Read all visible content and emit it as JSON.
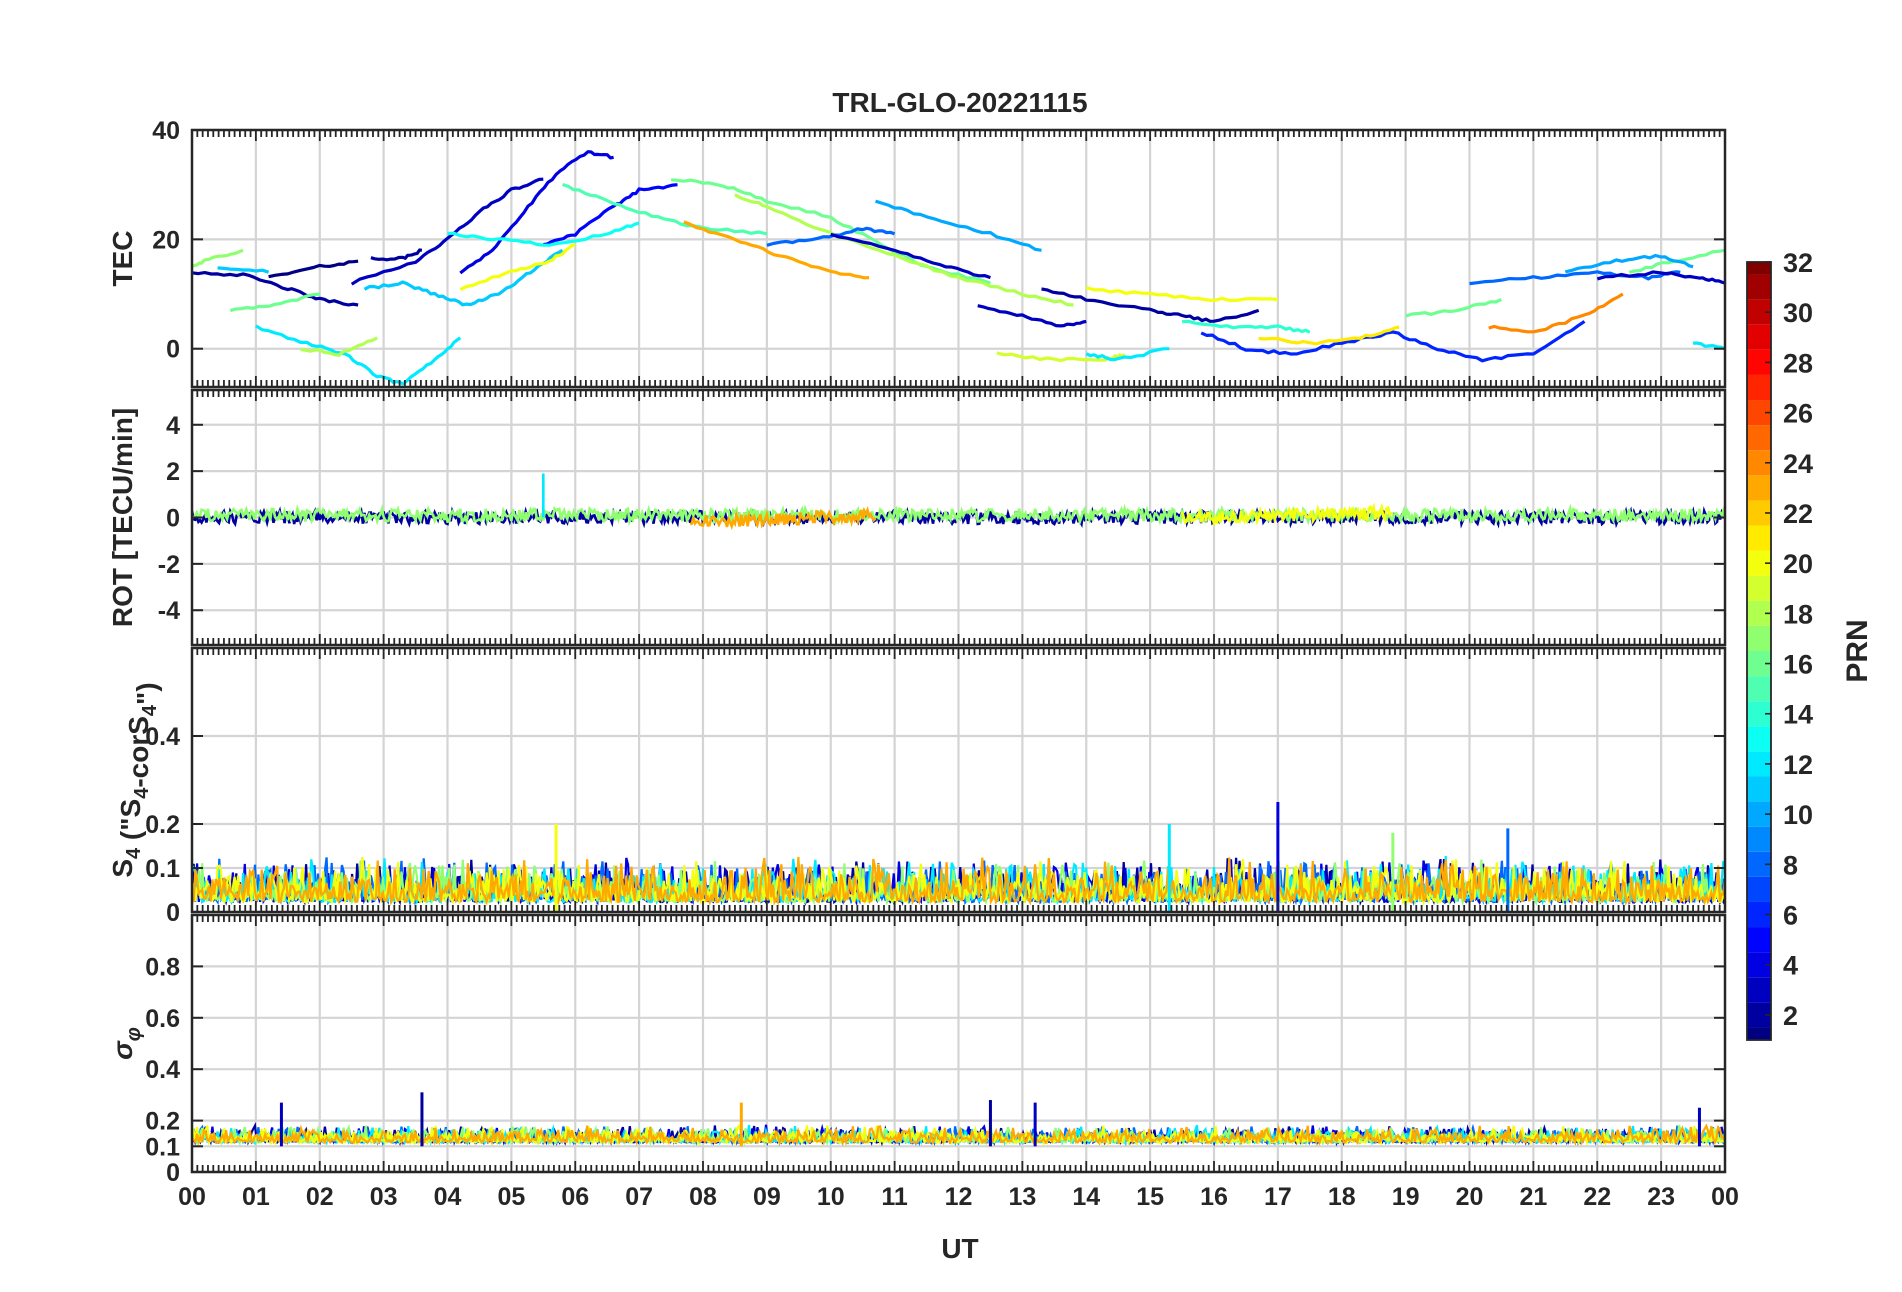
{
  "chart_data": {
    "type": "line",
    "title": "TRL-GLO-20221115",
    "xlabel": "UT",
    "x_tick_labels": [
      "00",
      "01",
      "02",
      "03",
      "04",
      "05",
      "06",
      "07",
      "08",
      "09",
      "10",
      "11",
      "12",
      "13",
      "14",
      "15",
      "16",
      "17",
      "18",
      "19",
      "20",
      "21",
      "22",
      "23",
      "00"
    ],
    "xlim": [
      0,
      24
    ],
    "grid": true,
    "panels": [
      {
        "id": "tec",
        "ylabel": "TEC",
        "ylim": [
          -7,
          40
        ],
        "yticks": [
          0,
          20,
          40
        ],
        "ytick_labels": [
          "0",
          "20",
          "40"
        ],
        "series": [
          {
            "prn": 2,
            "x": [
              0,
              0.8,
              1.5,
              2.0,
              2.6
            ],
            "y": [
              14,
              13.5,
              11,
              9,
              8
            ]
          },
          {
            "prn": 1,
            "x": [
              1.2,
              2.0,
              2.6
            ],
            "y": [
              13,
              15,
              16
            ]
          },
          {
            "prn": 2,
            "x": [
              2.8,
              3.3,
              3.6
            ],
            "y": [
              16.5,
              16.5,
              18
            ]
          },
          {
            "prn": 3,
            "x": [
              2.5,
              3.5,
              4.0,
              4.5,
              5.0,
              5.5
            ],
            "y": [
              12,
              16,
              20,
              25,
              29,
              31
            ]
          },
          {
            "prn": 4,
            "x": [
              4.2,
              4.7,
              5.2,
              5.7,
              6.2,
              6.6
            ],
            "y": [
              14,
              18,
              25,
              32,
              36,
              35
            ]
          },
          {
            "prn": 5,
            "x": [
              5.5,
              6.0,
              6.6,
              7.0,
              7.6
            ],
            "y": [
              19,
              21,
              26,
              29,
              30
            ]
          },
          {
            "prn": 11,
            "x": [
              0.4,
              1.2
            ],
            "y": [
              15,
              14
            ]
          },
          {
            "prn": 17,
            "x": [
              0,
              0.3,
              0.8
            ],
            "y": [
              15,
              16.5,
              18
            ]
          },
          {
            "prn": 16,
            "x": [
              0.6,
              1.3,
              2.0
            ],
            "y": [
              7,
              8,
              10
            ]
          },
          {
            "prn": 12,
            "x": [
              1.0,
              1.8,
              2.4,
              2.9,
              3.3,
              3.8,
              4.2
            ],
            "y": [
              4,
              1,
              -1,
              -5,
              -6.5,
              -2,
              2
            ]
          },
          {
            "prn": 18,
            "x": [
              1.7,
              2.3,
              2.9
            ],
            "y": [
              0,
              -1,
              2
            ]
          },
          {
            "prn": 11,
            "x": [
              2.7,
              3.3,
              3.8,
              4.3,
              4.8,
              5.3,
              5.8
            ],
            "y": [
              11,
              12,
              10,
              8,
              10,
              14,
              18
            ]
          },
          {
            "prn": 13,
            "x": [
              4.0,
              4.8,
              5.6,
              6.5,
              7.0
            ],
            "y": [
              21,
              20,
              19,
              21,
              23
            ]
          },
          {
            "prn": 20,
            "x": [
              4.2,
              5.0,
              5.6,
              6.0
            ],
            "y": [
              11,
              14,
              16,
              19
            ]
          },
          {
            "prn": 15,
            "x": [
              5.8,
              6.5,
              7.3,
              8.0,
              9.0
            ],
            "y": [
              30,
              27,
              24,
              22,
              21
            ]
          },
          {
            "prn": 16,
            "x": [
              7.5,
              8.3,
              9.0,
              10.0,
              10.8,
              11.5,
              12.5
            ],
            "y": [
              31,
              30,
              27,
              24,
              19,
              15,
              12
            ]
          },
          {
            "prn": 23,
            "x": [
              7.7,
              8.5,
              9.2,
              10.0,
              10.6
            ],
            "y": [
              23,
              20,
              17,
              14,
              13
            ]
          },
          {
            "prn": 18,
            "x": [
              8.5,
              9.0,
              10.0,
              11.0,
              12.0,
              13.0,
              13.8
            ],
            "y": [
              28,
              26,
              21,
              17,
              13,
              10,
              8
            ]
          },
          {
            "prn": 8,
            "x": [
              9.0,
              9.8,
              10.5,
              11.0
            ],
            "y": [
              19,
              20,
              22,
              21
            ]
          },
          {
            "prn": 10,
            "x": [
              10.7,
              11.5,
              12.5,
              13.3
            ],
            "y": [
              27,
              24,
              21,
              18
            ]
          },
          {
            "prn": 3,
            "x": [
              10.0,
              11.0,
              11.8,
              12.5
            ],
            "y": [
              21,
              18,
              15,
              13
            ]
          },
          {
            "prn": 3,
            "x": [
              12.3,
              13.0,
              13.6,
              14.0
            ],
            "y": [
              8,
              6,
              4,
              5
            ]
          },
          {
            "prn": 2,
            "x": [
              13.3,
              14.0,
              15.0,
              15.5,
              16.0,
              16.7
            ],
            "y": [
              11,
              9,
              7,
              6,
              5,
              7
            ]
          },
          {
            "prn": 19,
            "x": [
              12.6,
              13.5,
              14.3,
              14.6
            ],
            "y": [
              -1,
              -2,
              -2,
              -1
            ]
          },
          {
            "prn": 20,
            "x": [
              14.0,
              15.0,
              16.0,
              17.0
            ],
            "y": [
              11,
              10,
              9,
              9
            ]
          },
          {
            "prn": 12,
            "x": [
              14.0,
              14.5,
              15.3
            ],
            "y": [
              -1,
              -2,
              0
            ]
          },
          {
            "prn": 14,
            "x": [
              15.5,
              16.3,
              17.0,
              17.5
            ],
            "y": [
              5,
              4,
              4,
              3
            ]
          },
          {
            "prn": 6,
            "x": [
              15.8,
              16.5,
              17.2,
              18.0,
              18.8,
              19.5,
              20.2,
              21.0,
              21.8
            ],
            "y": [
              3,
              0,
              -1,
              1,
              3,
              0,
              -2,
              -1,
              5
            ]
          },
          {
            "prn": 21,
            "x": [
              16.7,
              17.5,
              18.3,
              18.9
            ],
            "y": [
              2,
              1,
              2,
              4
            ]
          },
          {
            "prn": 16,
            "x": [
              19.0,
              19.8,
              20.5
            ],
            "y": [
              6,
              7,
              9
            ]
          },
          {
            "prn": 24,
            "x": [
              20.3,
              21.0,
              21.8,
              22.4
            ],
            "y": [
              4,
              3,
              6,
              10
            ]
          },
          {
            "prn": 8,
            "x": [
              20.0,
              21.0,
              22.0,
              22.8,
              23.3
            ],
            "y": [
              12,
              13,
              14,
              13,
              14
            ]
          },
          {
            "prn": 3,
            "x": [
              22.0,
              23.0,
              23.6,
              24.0
            ],
            "y": [
              13,
              14,
              13,
              12
            ]
          },
          {
            "prn": 16,
            "x": [
              22.5,
              23.2,
              24.0
            ],
            "y": [
              14,
              16,
              18
            ]
          },
          {
            "prn": 10,
            "x": [
              21.5,
              22.3,
              23.0,
              23.5
            ],
            "y": [
              14,
              16,
              17,
              15
            ]
          },
          {
            "prn": 12,
            "x": [
              23.5,
              24.0
            ],
            "y": [
              1,
              0
            ]
          }
        ]
      },
      {
        "id": "rot",
        "ylabel": "ROT [TECU/min]",
        "ylim": [
          -5.5,
          5.5
        ],
        "yticks": [
          -4,
          -2,
          0,
          2,
          4
        ],
        "ytick_labels": [
          "-4",
          "-2",
          "0",
          "2",
          "4"
        ],
        "noise_band": [
          -0.4,
          0.4
        ],
        "series": [
          {
            "prn": 2,
            "x": [
              0,
              24
            ],
            "y": [
              0,
              0
            ]
          },
          {
            "prn": 17,
            "x": [
              0,
              24
            ],
            "y": [
              0.1,
              0.1
            ]
          },
          {
            "prn": 23,
            "x": [
              7.8,
              10.7
            ],
            "y": [
              -0.2,
              0.1
            ]
          },
          {
            "prn": 20,
            "x": [
              15.5,
              18.8
            ],
            "y": [
              0,
              0.2
            ]
          }
        ],
        "spikes": [
          {
            "x": 5.5,
            "y": 1.9,
            "prn": 12
          }
        ]
      },
      {
        "id": "s4",
        "ylabel": "S4 (\"S4-corS4\")",
        "ylim": [
          0,
          0.6
        ],
        "yticks": [
          0,
          0.1,
          0.2,
          0.4
        ],
        "ytick_labels": [
          "0",
          "0.1",
          "0.2",
          "0.4"
        ],
        "baseline_range": [
          0.0,
          0.15
        ],
        "spikes": [
          {
            "x": 5.7,
            "y": 0.2,
            "prn": 20
          },
          {
            "x": 15.3,
            "y": 0.2,
            "prn": 12
          },
          {
            "x": 17.0,
            "y": 0.25,
            "prn": 4
          },
          {
            "x": 20.6,
            "y": 0.19,
            "prn": 8
          },
          {
            "x": 18.8,
            "y": 0.18,
            "prn": 17
          }
        ]
      },
      {
        "id": "sigma",
        "ylabel": "σφ",
        "ylim": [
          0,
          1.0
        ],
        "yticks": [
          0,
          0.1,
          0.2,
          0.4,
          0.6,
          0.8
        ],
        "ytick_labels": [
          "0",
          "0.1",
          "0.2",
          "0.4",
          "0.6",
          "0.8"
        ],
        "baseline_range": [
          0.1,
          0.2
        ],
        "spikes": [
          {
            "x": 3.6,
            "y": 0.31,
            "prn": 2
          },
          {
            "x": 1.4,
            "y": 0.27,
            "prn": 3
          },
          {
            "x": 12.5,
            "y": 0.28,
            "prn": 2
          },
          {
            "x": 13.2,
            "y": 0.27,
            "prn": 3
          },
          {
            "x": 8.6,
            "y": 0.27,
            "prn": 23
          },
          {
            "x": 23.6,
            "y": 0.25,
            "prn": 3
          }
        ]
      }
    ],
    "colorbar": {
      "label": "PRN",
      "range": [
        1,
        32
      ],
      "tick_values": [
        2,
        4,
        6,
        8,
        10,
        12,
        14,
        16,
        18,
        20,
        22,
        24,
        26,
        28,
        30,
        32
      ],
      "tick_labels": [
        "2",
        "4",
        "6",
        "8",
        "10",
        "12",
        "14",
        "16",
        "18",
        "20",
        "22",
        "24",
        "26",
        "28",
        "30",
        "32"
      ],
      "colormap": "jet"
    }
  }
}
